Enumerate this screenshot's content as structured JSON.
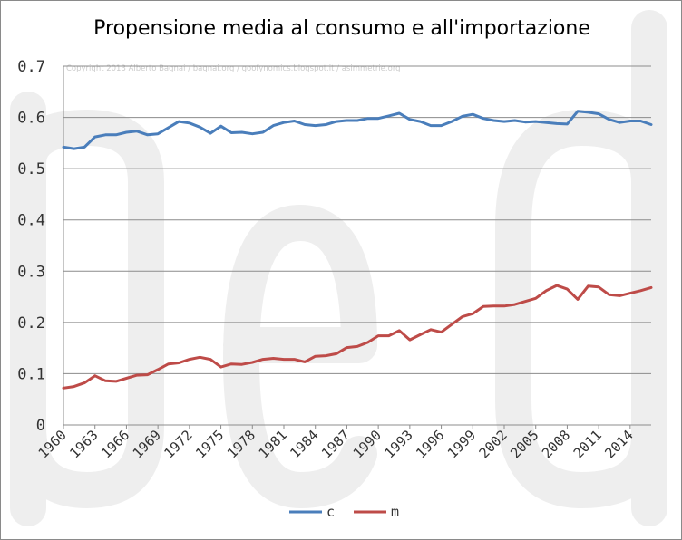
{
  "chart_data": {
    "type": "line",
    "title": "Propensione media al consumo e all'importazione",
    "xlabel": "",
    "ylabel": "",
    "ylim": [
      0,
      0.7
    ],
    "yticks": [
      "0",
      "0.1",
      "0.2",
      "0.3",
      "0.4",
      "0.5",
      "0.6",
      "0.7"
    ],
    "xlim": [
      1960,
      2016
    ],
    "xticks": [
      "1960",
      "1963",
      "1966",
      "1969",
      "1972",
      "1975",
      "1978",
      "1981",
      "1984",
      "1987",
      "1990",
      "1993",
      "1996",
      "1999",
      "2002",
      "2005",
      "2008",
      "2011",
      "2014"
    ],
    "grid": true,
    "legend": "bottom",
    "watermark": "Copyright 2013 Alberto Bagnai / bagnai.org / goofynomics.blogspot.it / asimmetrie.org",
    "x": [
      1960,
      1961,
      1962,
      1963,
      1964,
      1965,
      1966,
      1967,
      1968,
      1969,
      1970,
      1971,
      1972,
      1973,
      1974,
      1975,
      1976,
      1977,
      1978,
      1979,
      1980,
      1981,
      1982,
      1983,
      1984,
      1985,
      1986,
      1987,
      1988,
      1989,
      1990,
      1991,
      1992,
      1993,
      1994,
      1995,
      1996,
      1997,
      1998,
      1999,
      2000,
      2001,
      2002,
      2003,
      2004,
      2005,
      2006,
      2007,
      2008,
      2009,
      2010,
      2011,
      2012,
      2013,
      2014,
      2015,
      2016
    ],
    "series": [
      {
        "name": "c",
        "color": "#4a7ebb",
        "values": [
          0.542,
          0.539,
          0.542,
          0.562,
          0.566,
          0.566,
          0.571,
          0.573,
          0.566,
          0.568,
          0.58,
          0.592,
          0.589,
          0.581,
          0.569,
          0.583,
          0.57,
          0.571,
          0.568,
          0.571,
          0.584,
          0.59,
          0.593,
          0.586,
          0.584,
          0.586,
          0.592,
          0.594,
          0.594,
          0.598,
          0.598,
          0.603,
          0.608,
          0.596,
          0.592,
          0.584,
          0.584,
          0.592,
          0.602,
          0.606,
          0.598,
          0.594,
          0.592,
          0.594,
          0.591,
          0.592,
          0.59,
          0.588,
          0.587,
          0.612,
          0.61,
          0.607,
          0.596,
          0.59,
          0.593,
          0.593,
          0.586
        ]
      },
      {
        "name": "m",
        "color": "#be4b48",
        "values": [
          0.072,
          0.075,
          0.082,
          0.096,
          0.086,
          0.085,
          0.091,
          0.097,
          0.098,
          0.108,
          0.119,
          0.121,
          0.128,
          0.132,
          0.128,
          0.113,
          0.119,
          0.118,
          0.122,
          0.128,
          0.13,
          0.128,
          0.128,
          0.123,
          0.134,
          0.135,
          0.139,
          0.151,
          0.153,
          0.161,
          0.174,
          0.174,
          0.184,
          0.166,
          0.176,
          0.186,
          0.181,
          0.196,
          0.211,
          0.217,
          0.231,
          0.232,
          0.232,
          0.235,
          0.241,
          0.247,
          0.262,
          0.272,
          0.265,
          0.245,
          0.271,
          0.269,
          0.254,
          0.252,
          0.257,
          0.262,
          0.268
        ]
      }
    ]
  }
}
